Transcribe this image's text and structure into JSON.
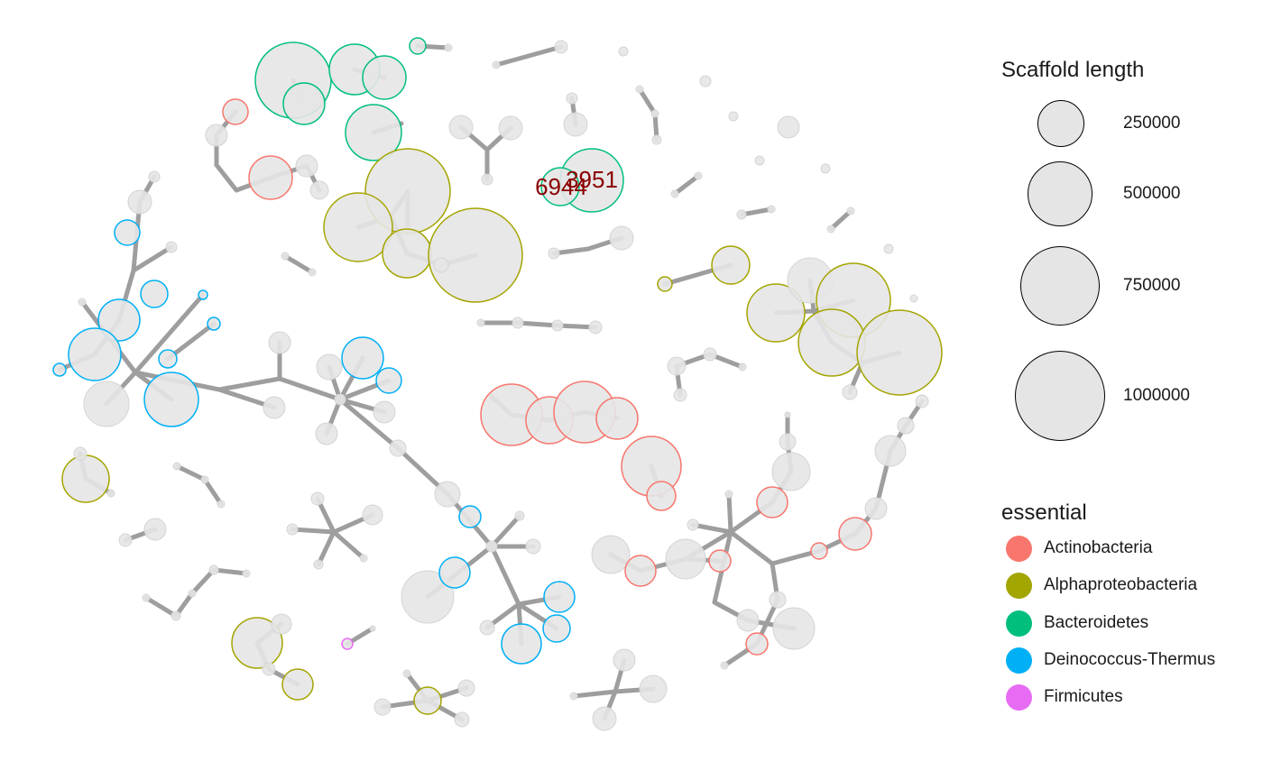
{
  "graph": {
    "node_fill": "#e5e5e5",
    "node_fill_opacity": 0.9,
    "edge_color": "#9e9e9e",
    "label_color": "#8b0000",
    "labeled_nodes": [
      {
        "id": "n_6944",
        "label": "6944"
      },
      {
        "id": "n_3951",
        "label": "3951"
      }
    ]
  },
  "size_legend": {
    "title": "Scaffold length",
    "entries": [
      {
        "label": "250000"
      },
      {
        "label": "500000"
      },
      {
        "label": "750000"
      },
      {
        "label": "1000000"
      }
    ]
  },
  "color_legend": {
    "title": "essential",
    "entries": [
      {
        "label": "Actinobacteria",
        "color": "#f8766d"
      },
      {
        "label": "Alphaproteobacteria",
        "color": "#a3a500"
      },
      {
        "label": "Bacteroidetes",
        "color": "#00bf7d"
      },
      {
        "label": "Deinococcus-Thermus",
        "color": "#00b0f6"
      },
      {
        "label": "Firmicutes",
        "color": "#e76bf3"
      }
    ]
  }
}
